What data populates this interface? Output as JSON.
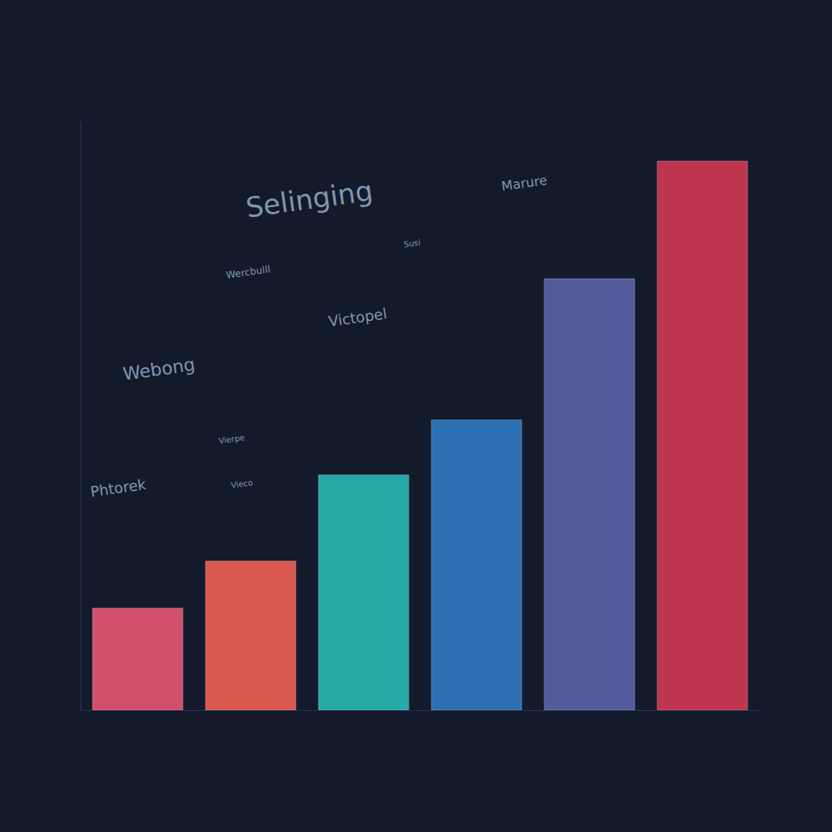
{
  "chart_data": {
    "type": "bar",
    "categories": [
      null,
      null,
      null,
      null,
      null,
      null
    ],
    "values": [
      13,
      19,
      30,
      37,
      55,
      70
    ],
    "colors": [
      "#d24f6b",
      "#d9574e",
      "#27a9a8",
      "#2d6fb3",
      "#545a9c",
      "#bf3550"
    ],
    "ylim": [
      0,
      75
    ],
    "grid": false,
    "tick_labels": false,
    "annotations": [
      "Selinging",
      "Marure",
      "Wercbulll",
      "Susi",
      "Victopel",
      "Webong",
      "Vierpe",
      "Vieco",
      "Phtorek"
    ]
  }
}
